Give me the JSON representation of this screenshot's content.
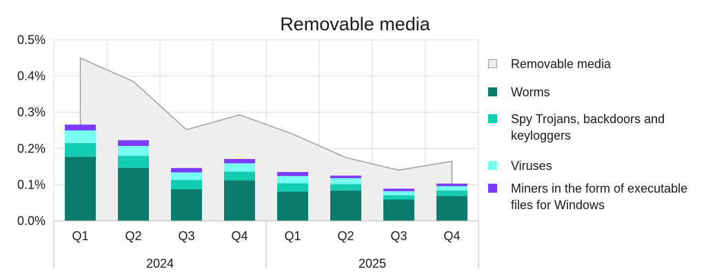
{
  "chart_data": {
    "type": "bar",
    "title": "Removable media",
    "categories": [
      "Q1",
      "Q2",
      "Q3",
      "Q4",
      "Q1",
      "Q2",
      "Q3",
      "Q4"
    ],
    "groups": [
      {
        "label": "2024",
        "span": 4
      },
      {
        "label": "2025",
        "span": 4
      }
    ],
    "ylim": [
      0,
      0.5
    ],
    "yticks": [
      "0.0%",
      "0.1%",
      "0.2%",
      "0.3%",
      "0.4%",
      "0.5%"
    ],
    "grid": true,
    "legend_position": "right",
    "area": {
      "name": "Removable media",
      "values": [
        0.45,
        0.385,
        0.252,
        0.293,
        0.24,
        0.175,
        0.14,
        0.165
      ],
      "fill": "#eeeeee",
      "stroke": "#9e9e9e"
    },
    "series": [
      {
        "name": "Worms",
        "values": [
          0.177,
          0.147,
          0.088,
          0.112,
          0.081,
          0.084,
          0.059,
          0.069
        ],
        "color": "#0b7d6c"
      },
      {
        "name": "Spy Trojans, backdoors and keyloggers",
        "values": [
          0.038,
          0.033,
          0.025,
          0.024,
          0.023,
          0.018,
          0.012,
          0.015
        ],
        "color": "#13ccb4"
      },
      {
        "name": "Viruses",
        "values": [
          0.035,
          0.027,
          0.021,
          0.023,
          0.02,
          0.016,
          0.011,
          0.012
        ],
        "color": "#77fff2"
      },
      {
        "name": "Miners in the form of executable files for Windows",
        "values": [
          0.016,
          0.016,
          0.012,
          0.012,
          0.011,
          0.007,
          0.007,
          0.007
        ],
        "color": "#7a3cff"
      }
    ]
  }
}
